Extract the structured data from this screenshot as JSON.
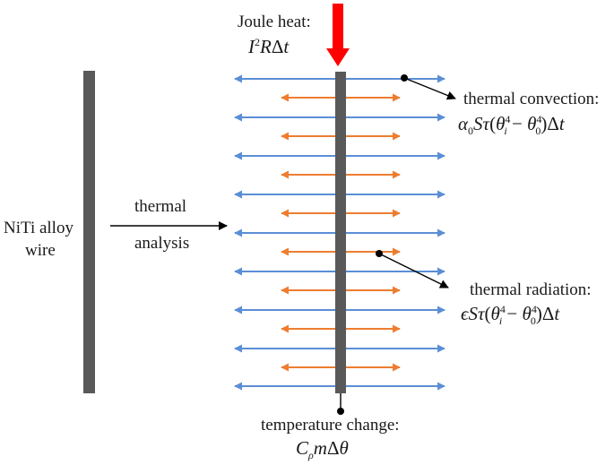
{
  "labels": {
    "wire": [
      "NiTi alloy",
      "wire"
    ],
    "thermal_analysis": [
      "thermal",
      "analysis"
    ],
    "joule_heat": "Joule heat:",
    "thermal_convection": "thermal convection:",
    "thermal_radiation": "thermal radiation:",
    "temperature_change": "temperature change:"
  },
  "formulas": {
    "joule_heat": "I²RΔt",
    "thermal_convection": "α₀Sτ(θᵢ⁴ − θ₀⁴)Δt",
    "thermal_radiation": "εSτ(θᵢ⁴ − θ₀⁴)Δt",
    "temperature_change": "CρmΔθ"
  },
  "colors": {
    "wire": "#595959",
    "heat_arrow": "#ff0000",
    "convection_arrow": "#5b8ed6",
    "radiation_arrow": "#ed7d31",
    "line": "#000000"
  }
}
